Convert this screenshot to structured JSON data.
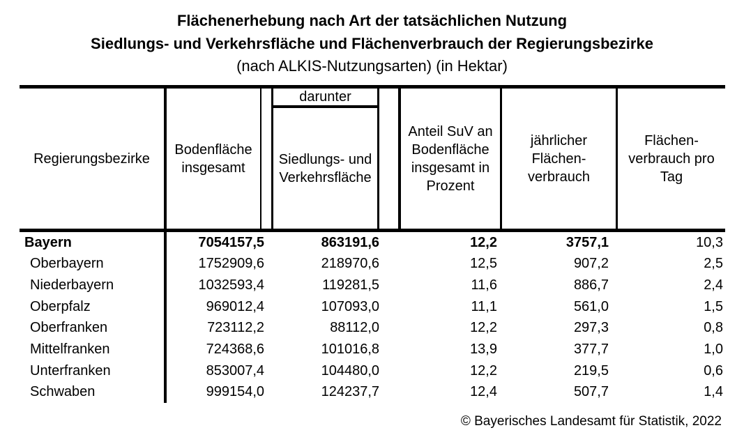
{
  "title": {
    "line1": "Flächenerhebung nach Art der tatsächlichen Nutzung",
    "line2": "Siedlungs- und Verkehrsfläche und Flächenverbrauch der Regierungsbezirke",
    "line3": "(nach ALKIS-Nutzungsarten) (in Hektar)"
  },
  "table": {
    "headers": {
      "region": "Regierungsbezirke",
      "bodenflaeche": "Bodenfläche\ninsgesamt",
      "darunter": "darunter",
      "suv": "Siedlungs- und\nVerkehrsfläche",
      "anteil": "Anteil SuV an\nBodenfläche\ninsgesamt in\nProzent",
      "jaehrlich": "jährlicher\nFlächen-\nverbrauch",
      "pro_tag": "Flächen-\nverbrauch pro\nTag"
    },
    "rows": [
      {
        "region": "Bayern",
        "values": [
          "7054157,5",
          "863191,6",
          "12,2",
          "3757,1",
          "10,3"
        ]
      },
      {
        "region": "Oberbayern",
        "values": [
          "1752909,6",
          "218970,6",
          "12,5",
          "907,2",
          "2,5"
        ]
      },
      {
        "region": "Niederbayern",
        "values": [
          "1032593,4",
          "119281,5",
          "11,6",
          "886,7",
          "2,4"
        ]
      },
      {
        "region": "Oberpfalz",
        "values": [
          "969012,4",
          "107093,0",
          "11,1",
          "561,0",
          "1,5"
        ]
      },
      {
        "region": "Oberfranken",
        "values": [
          "723112,2",
          "88112,0",
          "12,2",
          "297,3",
          "0,8"
        ]
      },
      {
        "region": "Mittelfranken",
        "values": [
          "724368,6",
          "101016,8",
          "13,9",
          "377,7",
          "1,0"
        ]
      },
      {
        "region": "Unterfranken",
        "values": [
          "853007,4",
          "104480,0",
          "12,2",
          "219,5",
          "0,6"
        ]
      },
      {
        "region": "Schwaben",
        "values": [
          "999154,0",
          "124237,7",
          "12,4",
          "507,7",
          "1,4"
        ]
      }
    ]
  },
  "footer": {
    "copyright": "© Bayerisches Landesamt für Statistik, 2022"
  },
  "colors": {
    "text": "#000000",
    "background": "#ffffff",
    "rule": "#000000"
  }
}
